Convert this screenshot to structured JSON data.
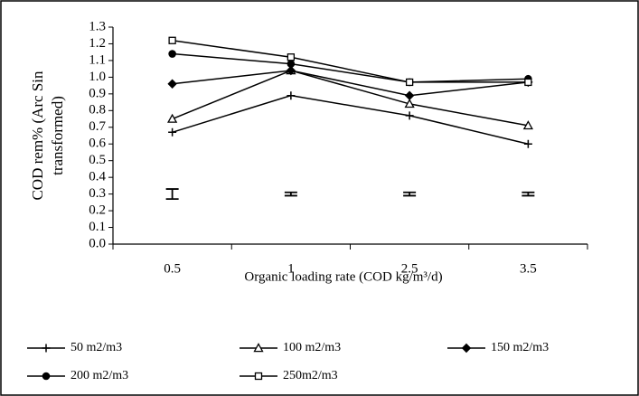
{
  "chart_data": {
    "type": "line",
    "y_label": [
      "COD rem% (Arc Sin",
      "transformed)"
    ],
    "x_label": "Organic loading rate (COD kg/m³/d)",
    "categories": [
      "0.5",
      "1",
      "2.5",
      "3.5"
    ],
    "ylim": [
      0,
      1.3
    ],
    "yticks": [
      {
        "value": 0,
        "label": "0.0"
      },
      0.1,
      0.2,
      0.3,
      0.4,
      0.5,
      0.6,
      0.7,
      0.8,
      0.9,
      {
        "value": 1,
        "label": "1.0"
      },
      1.1,
      1.2,
      1.3
    ],
    "series": [
      {
        "name": "50 m2/m3",
        "color": "#000000",
        "marker": "plus",
        "values": [
          0.67,
          0.89,
          0.77,
          0.6
        ]
      },
      {
        "name": "100 m2/m3",
        "color": "#000000",
        "marker": "triangle",
        "values": [
          0.75,
          1.04,
          0.84,
          0.71
        ]
      },
      {
        "name": "150 m2/m3",
        "color": "#000000",
        "marker": "diamond",
        "values": [
          0.96,
          1.04,
          0.89,
          0.97
        ]
      },
      {
        "name": "200 m2/m3",
        "color": "#000000",
        "marker": "circle",
        "values": [
          1.14,
          1.08,
          0.97,
          0.99
        ]
      },
      {
        "name": "250m2/m3",
        "color": "#000000",
        "marker": "square",
        "values": [
          1.22,
          1.12,
          0.97,
          0.97
        ]
      }
    ],
    "error_bars": {
      "color": "#000000",
      "values": [
        0.3,
        0.3,
        0.3,
        0.3
      ],
      "errors": [
        0.03,
        0.01,
        0.01,
        0.01
      ]
    }
  }
}
